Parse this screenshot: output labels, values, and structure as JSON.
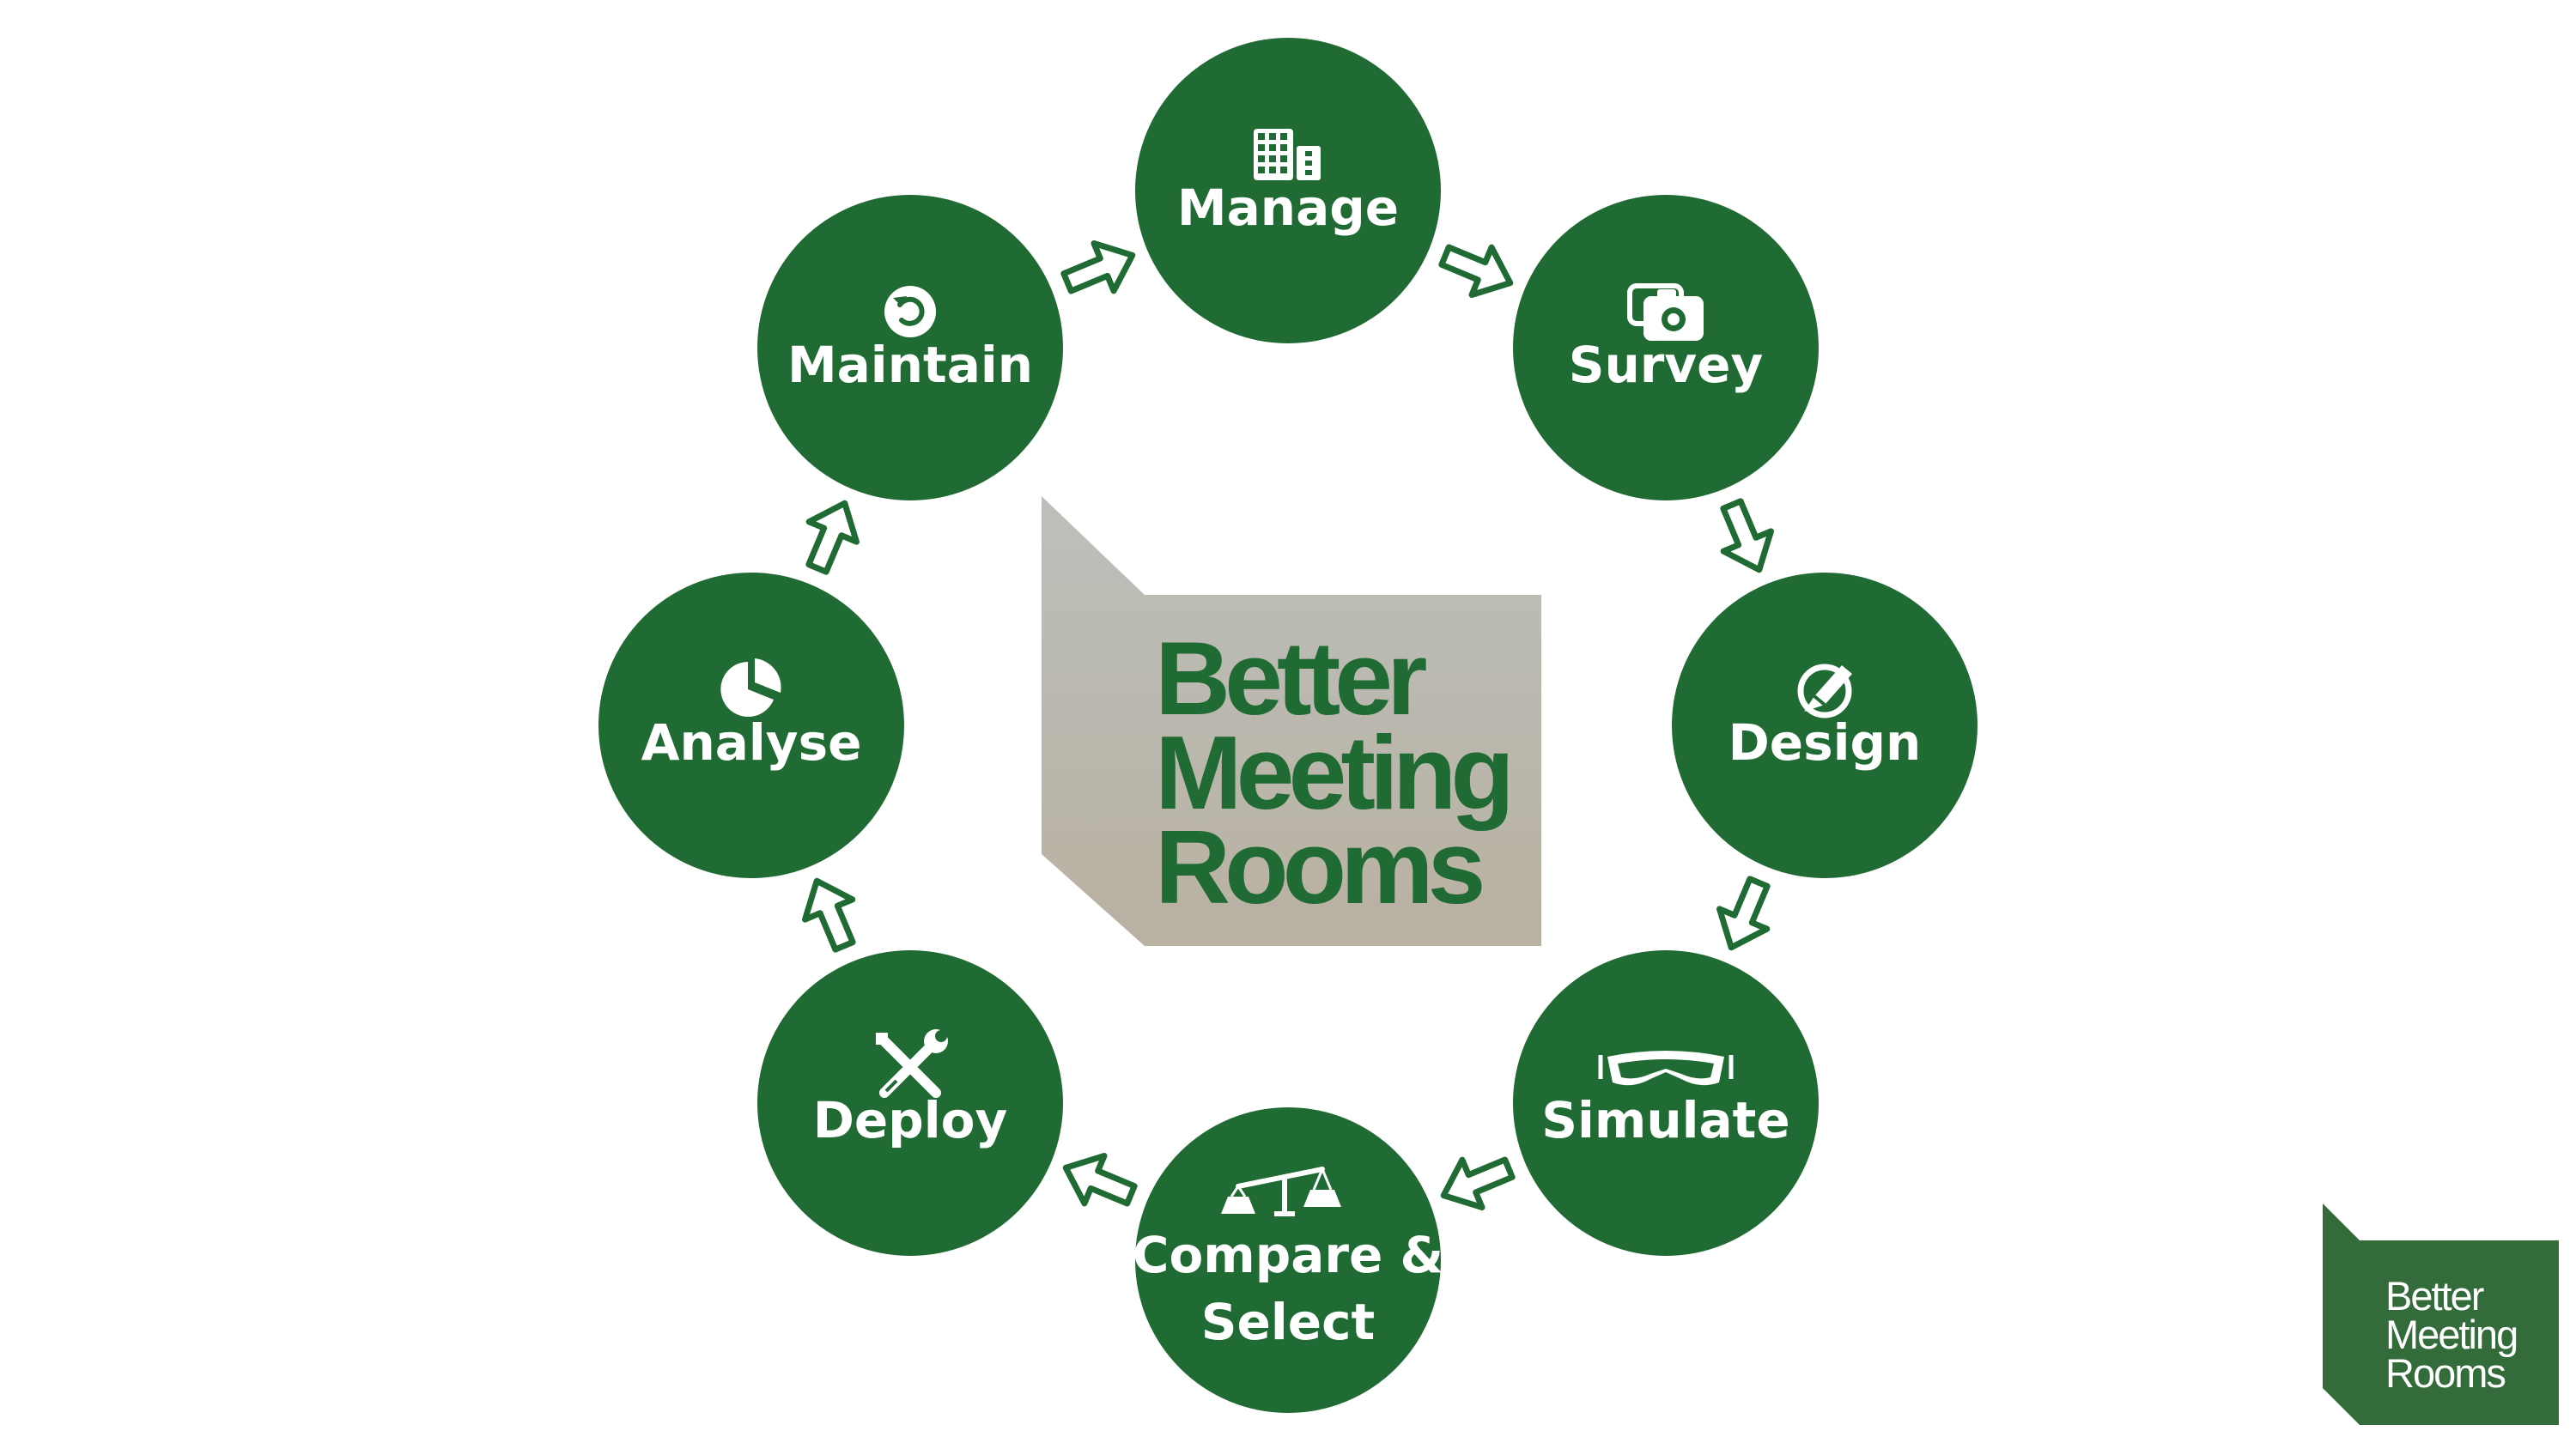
{
  "colors": {
    "primary": "#206a33",
    "text_on_primary": "#ffffff",
    "center_gradient_top": "#bcbfba",
    "center_gradient_bottom": "#b9b1a2",
    "logo_corner_bg": "#346b3a"
  },
  "center_logo": {
    "lines": [
      "Better",
      "Meeting",
      "Rooms"
    ]
  },
  "corner_logo": {
    "lines": [
      "Better",
      "Meeting",
      "Rooms"
    ]
  },
  "cycle": {
    "stages": [
      {
        "label_lines": [
          "Manage"
        ],
        "icon": "building-icon"
      },
      {
        "label_lines": [
          "Survey"
        ],
        "icon": "camera-icon"
      },
      {
        "label_lines": [
          "Design"
        ],
        "icon": "design-pencil-icon"
      },
      {
        "label_lines": [
          "Simulate"
        ],
        "icon": "vr-headset-icon"
      },
      {
        "label_lines": [
          "Compare &",
          "Select"
        ],
        "icon": "balance-scale-icon"
      },
      {
        "label_lines": [
          "Deploy"
        ],
        "icon": "tools-icon"
      },
      {
        "label_lines": [
          "Analyse"
        ],
        "icon": "pie-chart-icon"
      },
      {
        "label_lines": [
          "Maintain"
        ],
        "icon": "refresh-icon"
      }
    ],
    "arrow_direction": "clockwise"
  }
}
